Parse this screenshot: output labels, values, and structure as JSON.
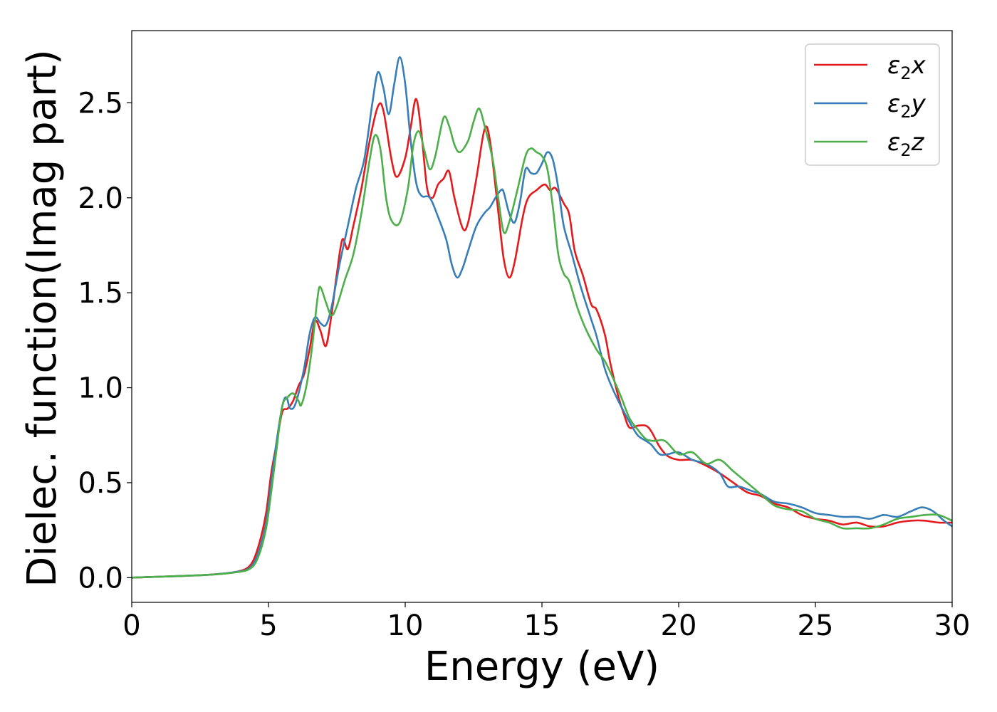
{
  "chart_data": {
    "type": "line",
    "title": "",
    "xlabel": "Energy (eV)",
    "ylabel": "Dielec. function(Imag part)",
    "xlim": [
      0,
      30
    ],
    "ylim": [
      -0.13,
      2.88
    ],
    "xticks": [
      0,
      5,
      10,
      15,
      20,
      25,
      30
    ],
    "xtick_labels": [
      "0",
      "5",
      "10",
      "15",
      "20",
      "25",
      "30"
    ],
    "yticks": [
      0.0,
      0.5,
      1.0,
      1.5,
      2.0,
      2.5
    ],
    "ytick_labels": [
      "0.0",
      "0.5",
      "1.0",
      "1.5",
      "2.0",
      "2.5"
    ],
    "grid": false,
    "legend_position": "top-right",
    "series": [
      {
        "name": "ε₂x",
        "label_base": "ε",
        "label_sub": "2",
        "label_var": "x",
        "color": "#e41a1c",
        "points": [
          [
            0,
            0
          ],
          [
            1,
            0.005
          ],
          [
            2,
            0.01
          ],
          [
            3,
            0.017
          ],
          [
            3.8,
            0.03
          ],
          [
            4.3,
            0.06
          ],
          [
            4.6,
            0.15
          ],
          [
            4.9,
            0.33
          ],
          [
            5.1,
            0.55
          ],
          [
            5.3,
            0.71
          ],
          [
            5.5,
            0.87
          ],
          [
            5.7,
            0.89
          ],
          [
            5.9,
            0.93
          ],
          [
            6.1,
            1.01
          ],
          [
            6.3,
            1.07
          ],
          [
            6.5,
            1.2
          ],
          [
            6.7,
            1.35
          ],
          [
            6.9,
            1.3
          ],
          [
            7.1,
            1.22
          ],
          [
            7.3,
            1.38
          ],
          [
            7.5,
            1.6
          ],
          [
            7.7,
            1.78
          ],
          [
            7.9,
            1.73
          ],
          [
            8.1,
            1.85
          ],
          [
            8.4,
            2.05
          ],
          [
            8.7,
            2.3
          ],
          [
            9.0,
            2.48
          ],
          [
            9.2,
            2.46
          ],
          [
            9.5,
            2.2
          ],
          [
            9.7,
            2.11
          ],
          [
            10.0,
            2.21
          ],
          [
            10.2,
            2.37
          ],
          [
            10.4,
            2.52
          ],
          [
            10.6,
            2.33
          ],
          [
            10.8,
            2.05
          ],
          [
            11.0,
            2.0
          ],
          [
            11.2,
            2.07
          ],
          [
            11.4,
            2.1
          ],
          [
            11.6,
            2.14
          ],
          [
            11.8,
            2.0
          ],
          [
            12.1,
            1.84
          ],
          [
            12.3,
            1.87
          ],
          [
            12.6,
            2.1
          ],
          [
            12.9,
            2.36
          ],
          [
            13.1,
            2.3
          ],
          [
            13.4,
            1.93
          ],
          [
            13.6,
            1.68
          ],
          [
            13.8,
            1.58
          ],
          [
            14.0,
            1.66
          ],
          [
            14.3,
            1.9
          ],
          [
            14.5,
            2.0
          ],
          [
            14.8,
            2.04
          ],
          [
            15.1,
            2.07
          ],
          [
            15.3,
            2.04
          ],
          [
            15.5,
            2.05
          ],
          [
            15.8,
            1.97
          ],
          [
            16.0,
            1.91
          ],
          [
            16.2,
            1.72
          ],
          [
            16.5,
            1.59
          ],
          [
            16.8,
            1.44
          ],
          [
            17.0,
            1.41
          ],
          [
            17.3,
            1.28
          ],
          [
            17.5,
            1.13
          ],
          [
            17.8,
            0.95
          ],
          [
            18.0,
            0.86
          ],
          [
            18.2,
            0.79
          ],
          [
            18.5,
            0.8
          ],
          [
            18.8,
            0.8
          ],
          [
            19.0,
            0.77
          ],
          [
            19.3,
            0.69
          ],
          [
            19.6,
            0.64
          ],
          [
            20.0,
            0.62
          ],
          [
            20.5,
            0.62
          ],
          [
            21.0,
            0.59
          ],
          [
            21.5,
            0.55
          ],
          [
            22.0,
            0.5
          ],
          [
            22.5,
            0.45
          ],
          [
            23.0,
            0.43
          ],
          [
            23.5,
            0.39
          ],
          [
            24.0,
            0.37
          ],
          [
            24.5,
            0.33
          ],
          [
            25.0,
            0.31
          ],
          [
            25.5,
            0.3
          ],
          [
            26.0,
            0.28
          ],
          [
            26.5,
            0.29
          ],
          [
            27.0,
            0.27
          ],
          [
            27.5,
            0.27
          ],
          [
            28.0,
            0.29
          ],
          [
            28.5,
            0.3
          ],
          [
            29.0,
            0.3
          ],
          [
            29.5,
            0.29
          ],
          [
            30,
            0.29
          ]
        ]
      },
      {
        "name": "ε₂y",
        "label_base": "ε",
        "label_sub": "2",
        "label_var": "y",
        "color": "#377eb8",
        "points": [
          [
            0,
            0
          ],
          [
            1,
            0.005
          ],
          [
            2,
            0.01
          ],
          [
            3,
            0.017
          ],
          [
            3.8,
            0.03
          ],
          [
            4.3,
            0.05
          ],
          [
            4.6,
            0.12
          ],
          [
            4.9,
            0.28
          ],
          [
            5.1,
            0.5
          ],
          [
            5.3,
            0.72
          ],
          [
            5.5,
            0.9
          ],
          [
            5.65,
            0.95
          ],
          [
            5.8,
            0.89
          ],
          [
            6.0,
            0.92
          ],
          [
            6.3,
            1.1
          ],
          [
            6.5,
            1.28
          ],
          [
            6.7,
            1.37
          ],
          [
            6.9,
            1.34
          ],
          [
            7.1,
            1.33
          ],
          [
            7.3,
            1.42
          ],
          [
            7.6,
            1.65
          ],
          [
            7.9,
            1.85
          ],
          [
            8.2,
            2.05
          ],
          [
            8.5,
            2.2
          ],
          [
            8.8,
            2.5
          ],
          [
            9.0,
            2.66
          ],
          [
            9.2,
            2.58
          ],
          [
            9.4,
            2.44
          ],
          [
            9.6,
            2.6
          ],
          [
            9.8,
            2.74
          ],
          [
            10.0,
            2.6
          ],
          [
            10.2,
            2.3
          ],
          [
            10.4,
            2.08
          ],
          [
            10.6,
            2.01
          ],
          [
            10.9,
            2.0
          ],
          [
            11.2,
            1.9
          ],
          [
            11.5,
            1.78
          ],
          [
            11.7,
            1.65
          ],
          [
            11.9,
            1.58
          ],
          [
            12.1,
            1.63
          ],
          [
            12.3,
            1.72
          ],
          [
            12.6,
            1.85
          ],
          [
            12.9,
            1.92
          ],
          [
            13.1,
            1.95
          ],
          [
            13.3,
            2.0
          ],
          [
            13.5,
            2.04
          ],
          [
            13.6,
            2.03
          ],
          [
            13.8,
            1.92
          ],
          [
            14.0,
            1.87
          ],
          [
            14.2,
            1.98
          ],
          [
            14.4,
            2.15
          ],
          [
            14.6,
            2.13
          ],
          [
            14.8,
            2.13
          ],
          [
            15.0,
            2.18
          ],
          [
            15.2,
            2.24
          ],
          [
            15.4,
            2.2
          ],
          [
            15.6,
            2.05
          ],
          [
            15.8,
            1.85
          ],
          [
            16.1,
            1.7
          ],
          [
            16.4,
            1.54
          ],
          [
            16.8,
            1.36
          ],
          [
            17.0,
            1.27
          ],
          [
            17.3,
            1.1
          ],
          [
            17.6,
            0.99
          ],
          [
            17.9,
            0.9
          ],
          [
            18.2,
            0.82
          ],
          [
            18.5,
            0.75
          ],
          [
            18.8,
            0.72
          ],
          [
            19.0,
            0.7
          ],
          [
            19.3,
            0.65
          ],
          [
            19.6,
            0.65
          ],
          [
            20.0,
            0.66
          ],
          [
            20.5,
            0.62
          ],
          [
            21.0,
            0.6
          ],
          [
            21.5,
            0.55
          ],
          [
            21.8,
            0.48
          ],
          [
            22.2,
            0.48
          ],
          [
            22.6,
            0.46
          ],
          [
            23.0,
            0.44
          ],
          [
            23.5,
            0.4
          ],
          [
            24.0,
            0.39
          ],
          [
            24.5,
            0.37
          ],
          [
            25.0,
            0.34
          ],
          [
            25.5,
            0.33
          ],
          [
            26.0,
            0.32
          ],
          [
            26.5,
            0.32
          ],
          [
            27.0,
            0.31
          ],
          [
            27.5,
            0.33
          ],
          [
            28.0,
            0.32
          ],
          [
            28.5,
            0.35
          ],
          [
            28.9,
            0.37
          ],
          [
            29.3,
            0.35
          ],
          [
            29.7,
            0.3
          ],
          [
            30,
            0.27
          ]
        ]
      },
      {
        "name": "ε₂z",
        "label_base": "ε",
        "label_sub": "2",
        "label_var": "z",
        "color": "#4daf4a",
        "points": [
          [
            0,
            0
          ],
          [
            1,
            0.005
          ],
          [
            2,
            0.01
          ],
          [
            3,
            0.017
          ],
          [
            3.8,
            0.028
          ],
          [
            4.3,
            0.045
          ],
          [
            4.6,
            0.1
          ],
          [
            4.9,
            0.25
          ],
          [
            5.1,
            0.45
          ],
          [
            5.3,
            0.68
          ],
          [
            5.5,
            0.9
          ],
          [
            5.7,
            0.95
          ],
          [
            5.9,
            0.97
          ],
          [
            6.1,
            0.93
          ],
          [
            6.2,
            0.91
          ],
          [
            6.4,
            1.02
          ],
          [
            6.6,
            1.22
          ],
          [
            6.8,
            1.48
          ],
          [
            6.9,
            1.53
          ],
          [
            7.1,
            1.45
          ],
          [
            7.3,
            1.38
          ],
          [
            7.5,
            1.43
          ],
          [
            7.8,
            1.57
          ],
          [
            8.1,
            1.7
          ],
          [
            8.4,
            1.92
          ],
          [
            8.7,
            2.2
          ],
          [
            8.9,
            2.33
          ],
          [
            9.1,
            2.25
          ],
          [
            9.3,
            2.0
          ],
          [
            9.5,
            1.88
          ],
          [
            9.8,
            1.87
          ],
          [
            10.1,
            2.05
          ],
          [
            10.3,
            2.28
          ],
          [
            10.5,
            2.35
          ],
          [
            10.7,
            2.25
          ],
          [
            10.9,
            2.15
          ],
          [
            11.1,
            2.22
          ],
          [
            11.4,
            2.42
          ],
          [
            11.6,
            2.38
          ],
          [
            11.8,
            2.28
          ],
          [
            12.0,
            2.24
          ],
          [
            12.3,
            2.3
          ],
          [
            12.5,
            2.4
          ],
          [
            12.7,
            2.47
          ],
          [
            12.9,
            2.38
          ],
          [
            13.2,
            2.2
          ],
          [
            13.4,
            2.0
          ],
          [
            13.6,
            1.82
          ],
          [
            13.8,
            1.87
          ],
          [
            14.1,
            2.04
          ],
          [
            14.4,
            2.22
          ],
          [
            14.6,
            2.26
          ],
          [
            14.8,
            2.24
          ],
          [
            15.0,
            2.22
          ],
          [
            15.2,
            2.15
          ],
          [
            15.4,
            1.95
          ],
          [
            15.6,
            1.7
          ],
          [
            15.8,
            1.6
          ],
          [
            16.0,
            1.56
          ],
          [
            16.3,
            1.42
          ],
          [
            16.6,
            1.31
          ],
          [
            17.0,
            1.2
          ],
          [
            17.3,
            1.14
          ],
          [
            17.6,
            1.05
          ],
          [
            17.9,
            0.95
          ],
          [
            18.2,
            0.84
          ],
          [
            18.5,
            0.78
          ],
          [
            18.8,
            0.73
          ],
          [
            19.1,
            0.72
          ],
          [
            19.5,
            0.72
          ],
          [
            20.0,
            0.65
          ],
          [
            20.5,
            0.66
          ],
          [
            21.0,
            0.6
          ],
          [
            21.5,
            0.62
          ],
          [
            22.0,
            0.56
          ],
          [
            22.5,
            0.5
          ],
          [
            23.0,
            0.44
          ],
          [
            23.5,
            0.38
          ],
          [
            24.0,
            0.36
          ],
          [
            24.5,
            0.35
          ],
          [
            25.0,
            0.31
          ],
          [
            25.5,
            0.29
          ],
          [
            26.0,
            0.26
          ],
          [
            26.5,
            0.26
          ],
          [
            27.0,
            0.26
          ],
          [
            27.5,
            0.28
          ],
          [
            28.0,
            0.31
          ],
          [
            28.5,
            0.32
          ],
          [
            29.0,
            0.33
          ],
          [
            29.5,
            0.33
          ],
          [
            30,
            0.3
          ]
        ]
      }
    ]
  }
}
